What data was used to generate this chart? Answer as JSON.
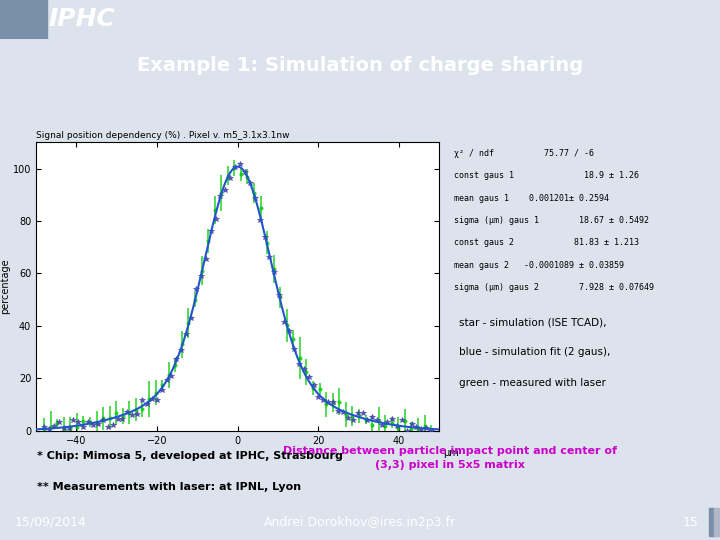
{
  "title": "Example 1: Simulation of charge sharing",
  "title_bg": "#1a237e",
  "title_color": "#ffffff",
  "header_bg": "#b0b8c8",
  "iphc_text": "IPHC",
  "iphc_color": "#ffffff",
  "iphc_bg": "#1a3a6e",
  "plot_title": "Signal position dependency (%) . Pixel v. m5_3.1x3.1nw",
  "xlabel": "µm",
  "xlabel_caption": "Distance between particle impact point and center of\n(3,3) pixel in 5x5 matrix",
  "xlabel_caption_color": "#cc00cc",
  "ylabel": "percentage",
  "xlim": [
    -50,
    50
  ],
  "ylim": [
    0,
    110
  ],
  "xticks": [
    -40,
    -20,
    0,
    20,
    40
  ],
  "yticks": [
    0,
    20,
    40,
    60,
    80,
    100
  ],
  "sigma1": 18.67,
  "sigma2": 7.928,
  "amp1": 18.9,
  "amp2": 81.83,
  "mean1": 0.001201,
  "mean2": -0.0001089,
  "stats_text": "χ² / ndf          75.77 / -6\nconst gaus 1              18.9 ± 1.26\nmean gaus 1    0.001201± 0.2594\nsigma (µm) gaus 1        18.67 ± 0.5492\nconst gaus 2            81.83 ± 1.213\nmean gaus 2   -0.0001089 ± 0.03859\nsigma (µm) gaus 2        7.928 ± 0.07649",
  "legend_text": "star - simulation (ISE TCAD),\nblue - simulation fit (2 gaus),\ngreen - measured with laser",
  "footnote1": "* Chip: Mimosa 5, developed at IPHC, Strasbourg",
  "footnote2": "** Measurements with laser: at IPNL, Lyon",
  "footer_date": "15/09/2014",
  "footer_email": "Andrei.Dorokhov@ires.in2p3.fr",
  "footer_page": "15",
  "footer_bg": "#1a3a6e",
  "footer_color": "#ffffff",
  "main_bg": "#dde3ec",
  "plot_bg": "#ffffff",
  "star_color": "#4444aa",
  "fit_color": "#2255cc",
  "laser_color": "#00cc00",
  "noise_floor": 2.0
}
